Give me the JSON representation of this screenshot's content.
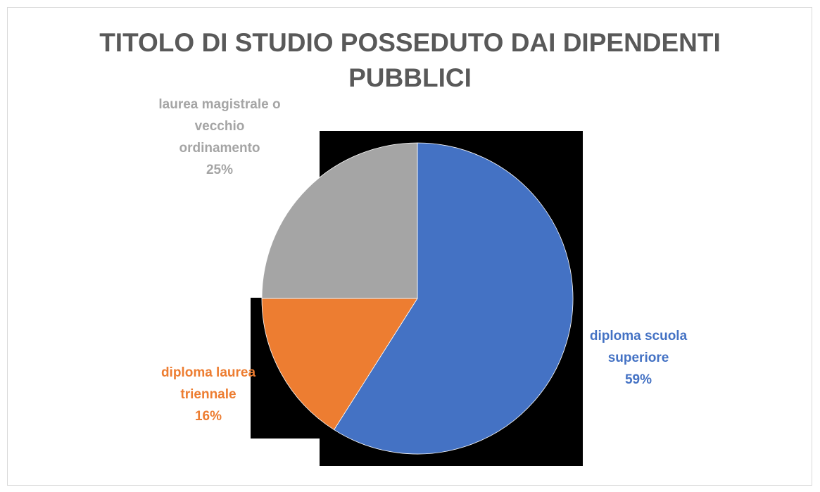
{
  "chart_data": {
    "type": "pie",
    "title_lines": [
      "TITOLO DI STUDIO POSSEDUTO DAI DIPENDENTI",
      "PUBBLICI"
    ],
    "slices": [
      {
        "category": "diploma scuola superiore",
        "label_lines": [
          "diploma scuola",
          "superiore"
        ],
        "percent_label": "59%",
        "value": 59,
        "color": "#4472C4"
      },
      {
        "category": "diploma laurea triennale",
        "label_lines": [
          "diploma laurea",
          "triennale"
        ],
        "percent_label": "16%",
        "value": 16,
        "color": "#ED7D31"
      },
      {
        "category": "laurea magistrale o vecchio ordinamento",
        "label_lines": [
          "laurea magistrale o",
          "vecchio",
          "ordinamento"
        ],
        "percent_label": "25%",
        "value": 25,
        "color": "#A5A5A5"
      }
    ],
    "legend": "none",
    "backdrop_color": "#000000"
  }
}
